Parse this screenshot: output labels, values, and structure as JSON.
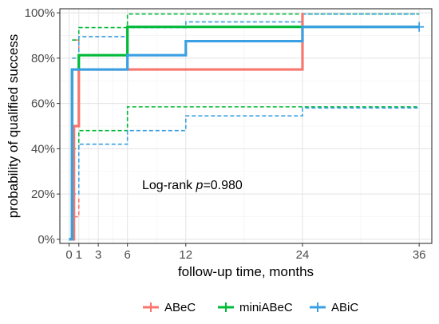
{
  "chart_data": {
    "type": "line",
    "subtype": "kaplan-meier step curves with 95% confidence bands",
    "xlabel": "follow-up time, months",
    "ylabel": "probability of qualified success",
    "xlim": [
      0,
      36
    ],
    "ylim": [
      0,
      100
    ],
    "x_ticks": [
      0,
      1,
      3,
      6,
      12,
      24,
      36
    ],
    "y_ticks": [
      0,
      20,
      40,
      60,
      80,
      100
    ],
    "y_tick_labels": [
      "0%",
      "20%",
      "40%",
      "60%",
      "80%",
      "100%"
    ],
    "grid": true,
    "legend_position": "bottom",
    "annotation": {
      "prefix": "Log-rank ",
      "p_symbol": "p",
      "value": "=0.980",
      "x": 7.5,
      "y": 24
    },
    "series": [
      {
        "name": "ABeC",
        "color": "#F8766D",
        "x": [
          0,
          0.5,
          1,
          24,
          24
        ],
        "y": [
          0,
          50,
          75,
          75,
          100
        ],
        "lower_ci": {
          "x": [
            0.5,
            1,
            1
          ],
          "y": [
            10,
            18,
            18
          ]
        },
        "upper_ci": {
          "x": [
            0.5,
            1,
            1
          ],
          "y": [
            88,
            84,
            88
          ]
        },
        "censor_marks": []
      },
      {
        "name": "miniABeC",
        "color": "#00BA38",
        "x": [
          0,
          0.3,
          1,
          6,
          24,
          36
        ],
        "y": [
          0,
          75,
          81.3,
          93.8,
          93.8,
          93.8
        ],
        "lower_ci": {
          "x": [
            0.3,
            1,
            6,
            36
          ],
          "y": [
            40,
            48,
            58.5,
            58.5
          ]
        },
        "upper_ci": {
          "x": [
            0.3,
            1,
            6,
            36
          ],
          "y": [
            88,
            93.5,
            99.5,
            99.5
          ]
        },
        "censor_marks": []
      },
      {
        "name": "ABiC",
        "color": "#3A9FE3",
        "x": [
          0,
          0.3,
          6,
          12,
          24,
          36
        ],
        "y": [
          0,
          75,
          81.3,
          87.5,
          93.8,
          93.8
        ],
        "lower_ci": {
          "x": [
            0.3,
            1,
            6,
            12,
            24,
            36
          ],
          "y": [
            20,
            42,
            48,
            54.5,
            58,
            58
          ]
        },
        "upper_ci": {
          "x": [
            0.3,
            1,
            6,
            12,
            24,
            36
          ],
          "y": [
            80,
            89.5,
            93.5,
            96,
            99.5,
            99.5
          ]
        },
        "censor_marks": [
          {
            "x": 36,
            "y": 93.8
          }
        ]
      }
    ]
  }
}
